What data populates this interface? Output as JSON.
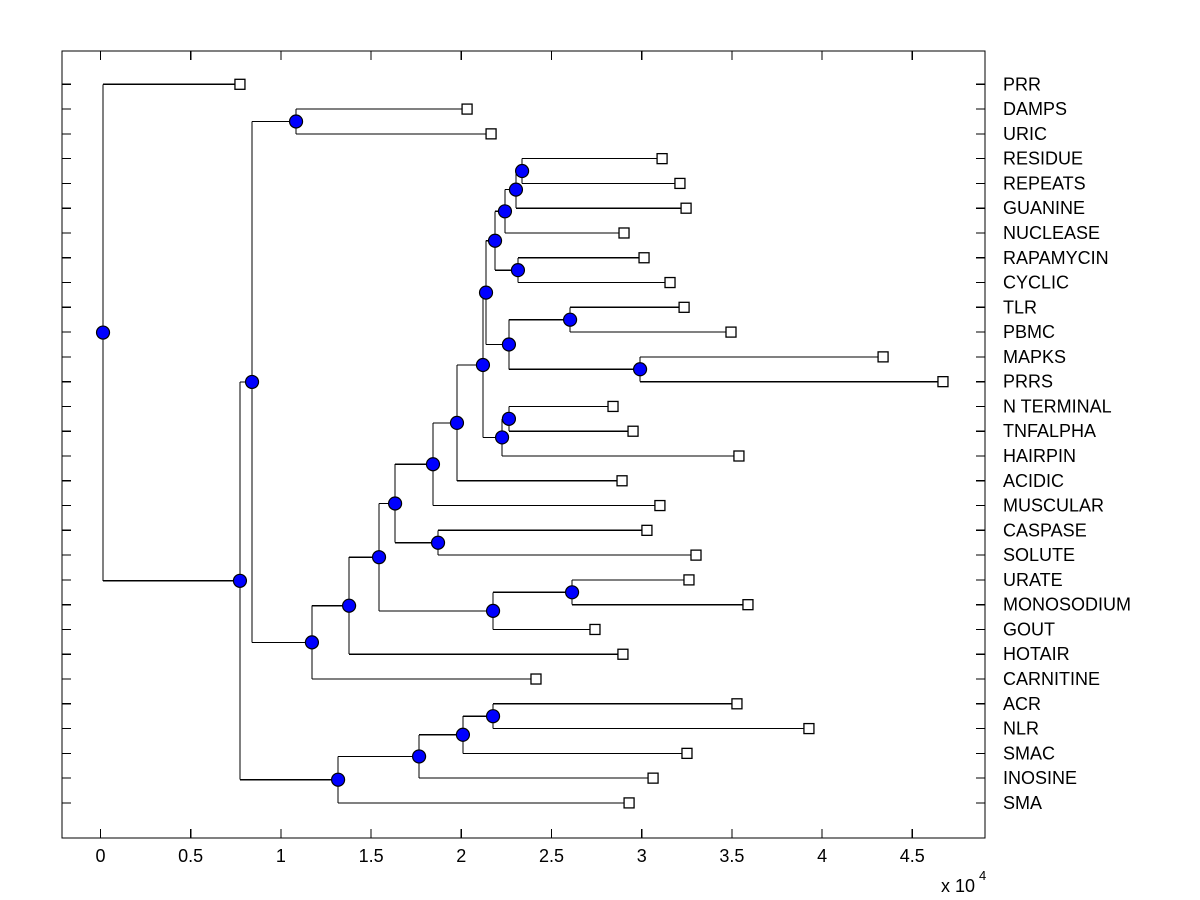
{
  "figure": {
    "background": "#ffffff",
    "frame_color": "#000000",
    "branch_color": "#000000",
    "internal_node_color": "#0000ff",
    "internal_node_edge": "#000000",
    "leaf_marker_fill": "#ffffff",
    "leaf_marker_edge": "#000000"
  },
  "axis": {
    "x_tick_labels": [
      "0",
      "0.5",
      "1",
      "1.5",
      "2",
      "2.5",
      "3",
      "3.5",
      "4",
      "4.5"
    ],
    "x_tick_values": [
      0,
      0.5,
      1,
      1.5,
      2,
      2.5,
      3,
      3.5,
      4,
      4.5
    ],
    "multiplier_base": "x 10",
    "multiplier_exponent": "4",
    "xlim": [
      -0.21,
      4.9
    ],
    "n_leaf_rows": 30
  },
  "chart_data": {
    "type": "dendrogram",
    "orientation": "left-to-right",
    "x_unit_scale": 10000,
    "title": "",
    "xlabel": "",
    "ylabel": "",
    "leaf_labels_top_to_bottom": [
      "PRR",
      "DAMPS",
      "URIC",
      "RESIDUE",
      "REPEATS",
      "GUANINE",
      "NUCLEASE",
      "RAPAMYCIN",
      "CYCLIC",
      "TLR",
      "PBMC",
      "MAPKS",
      "PRRS",
      "N TERMINAL",
      "TNFALPHA",
      "HAIRPIN",
      "ACIDIC",
      "MUSCULAR",
      "CASPASE",
      "SOLUTE",
      "URATE",
      "MONOSODIUM",
      "GOUT",
      "HOTAIR",
      "CARNITINE",
      "ACR",
      "NLR",
      "SMAC",
      "INOSINE",
      "SMA"
    ],
    "tree": {
      "x": 0.014,
      "children": [
        {
          "name": "PRR",
          "x": 0.773
        },
        {
          "x": 0.773,
          "children": [
            {
              "x": 0.84,
              "children": [
                {
                  "x": 1.084,
                  "children": [
                    {
                      "name": "DAMPS",
                      "x": 2.032
                    },
                    {
                      "name": "URIC",
                      "x": 2.165
                    }
                  ]
                },
                {
                  "x": 1.172,
                  "children": [
                    {
                      "x": 1.378,
                      "children": [
                        {
                          "x": 1.544,
                          "children": [
                            {
                              "x": 1.633,
                              "children": [
                                {
                                  "x": 1.843,
                                  "children": [
                                    {
                                      "x": 1.976,
                                      "children": [
                                        {
                                          "x": 2.12,
                                          "children": [
                                            {
                                              "x": 2.137,
                                              "children": [
                                                {
                                                  "x": 2.187,
                                                  "children": [
                                                    {
                                                      "x": 2.242,
                                                      "children": [
                                                        {
                                                          "x": 2.303,
                                                          "children": [
                                                            {
                                                              "x": 2.337,
                                                              "children": [
                                                                {
                                                                  "name": "RESIDUE",
                                                                  "x": 3.113
                                                                },
                                                                {
                                                                  "name": "REPEATS",
                                                                  "x": 3.212
                                                                }
                                                              ]
                                                            },
                                                            {
                                                              "name": "GUANINE",
                                                              "x": 3.246
                                                            }
                                                          ]
                                                        },
                                                        {
                                                          "name": "NUCLEASE",
                                                          "x": 2.902
                                                        }
                                                      ]
                                                    },
                                                    {
                                                      "x": 2.314,
                                                      "children": [
                                                        {
                                                          "name": "RAPAMYCIN",
                                                          "x": 3.013
                                                        },
                                                        {
                                                          "name": "CYCLIC",
                                                          "x": 3.157
                                                        }
                                                      ]
                                                    }
                                                  ]
                                                },
                                                {
                                                  "x": 2.264,
                                                  "children": [
                                                    {
                                                      "x": 2.603,
                                                      "children": [
                                                        {
                                                          "name": "TLR",
                                                          "x": 3.235
                                                        },
                                                        {
                                                          "name": "PBMC",
                                                          "x": 3.495
                                                        }
                                                      ]
                                                    },
                                                    {
                                                      "x": 2.991,
                                                      "children": [
                                                        {
                                                          "name": "MAPKS",
                                                          "x": 4.338
                                                        },
                                                        {
                                                          "name": "PRRS",
                                                          "x": 4.67
                                                        }
                                                      ]
                                                    }
                                                  ]
                                                }
                                              ]
                                            },
                                            {
                                              "x": 2.226,
                                              "children": [
                                                {
                                                  "x": 2.264,
                                                  "children": [
                                                    {
                                                      "name": "N TERMINAL",
                                                      "x": 2.841
                                                    },
                                                    {
                                                      "name": "TNFALPHA",
                                                      "x": 2.952
                                                    }
                                                  ]
                                                },
                                                {
                                                  "name": "HAIRPIN",
                                                  "x": 3.539
                                                }
                                              ]
                                            }
                                          ]
                                        },
                                        {
                                          "name": "ACIDIC",
                                          "x": 2.891
                                        }
                                      ]
                                    },
                                    {
                                      "name": "MUSCULAR",
                                      "x": 3.101
                                    }
                                  ]
                                },
                                {
                                  "x": 1.871,
                                  "children": [
                                    {
                                      "name": "CASPASE",
                                      "x": 3.029
                                    },
                                    {
                                      "name": "SOLUTE",
                                      "x": 3.301
                                    }
                                  ]
                                }
                              ]
                            },
                            {
                              "x": 2.176,
                              "children": [
                                {
                                  "x": 2.614,
                                  "children": [
                                    {
                                      "name": "URATE",
                                      "x": 3.262
                                    },
                                    {
                                      "name": "MONOSODIUM",
                                      "x": 3.589
                                    }
                                  ]
                                },
                                {
                                  "name": "GOUT",
                                  "x": 2.741
                                }
                              ]
                            }
                          ]
                        },
                        {
                          "name": "HOTAIR",
                          "x": 2.896
                        }
                      ]
                    },
                    {
                      "name": "CARNITINE",
                      "x": 2.414
                    }
                  ]
                }
              ]
            },
            {
              "x": 1.317,
              "children": [
                {
                  "x": 1.766,
                  "children": [
                    {
                      "x": 2.009,
                      "children": [
                        {
                          "x": 2.176,
                          "children": [
                            {
                              "name": "ACR",
                              "x": 3.528
                            },
                            {
                              "name": "NLR",
                              "x": 3.927
                            }
                          ]
                        },
                        {
                          "name": "SMAC",
                          "x": 3.251
                        }
                      ]
                    },
                    {
                      "name": "INOSINE",
                      "x": 3.063
                    }
                  ]
                },
                {
                  "name": "SMA",
                  "x": 2.93
                }
              ]
            }
          ]
        }
      ]
    }
  }
}
